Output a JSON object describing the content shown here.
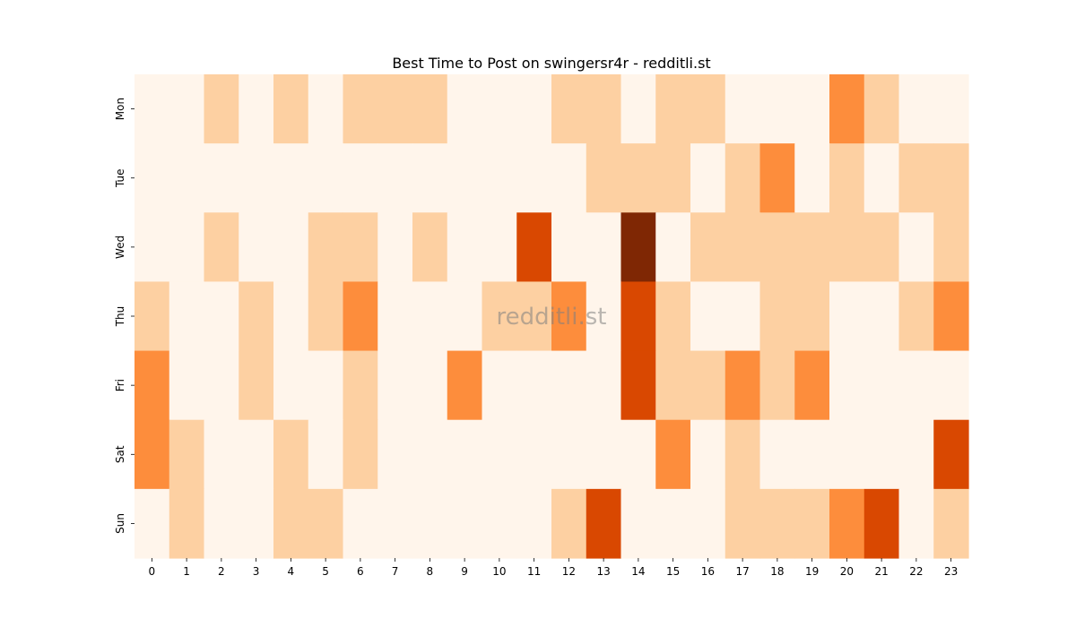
{
  "chart_data": {
    "type": "heatmap",
    "title": "Best Time to Post on swingersr4r - redditli.st",
    "watermark": "redditli.st",
    "x_categories": [
      "0",
      "1",
      "2",
      "3",
      "4",
      "5",
      "6",
      "7",
      "8",
      "9",
      "10",
      "11",
      "12",
      "13",
      "14",
      "15",
      "16",
      "17",
      "18",
      "19",
      "20",
      "21",
      "22",
      "23"
    ],
    "y_categories": [
      "Mon",
      "Tue",
      "Wed",
      "Thu",
      "Fri",
      "Sat",
      "Sun"
    ],
    "values": [
      [
        0,
        0,
        1,
        0,
        1,
        0,
        1,
        1,
        1,
        0,
        0,
        0,
        1,
        1,
        0,
        1,
        1,
        0,
        0,
        0,
        2,
        1,
        0,
        0
      ],
      [
        0,
        0,
        0,
        0,
        0,
        0,
        0,
        0,
        0,
        0,
        0,
        0,
        0,
        1,
        1,
        1,
        0,
        1,
        2,
        0,
        1,
        0,
        1,
        1
      ],
      [
        0,
        0,
        1,
        0,
        0,
        1,
        1,
        0,
        1,
        0,
        0,
        3,
        0,
        0,
        4,
        0,
        1,
        1,
        1,
        1,
        1,
        1,
        0,
        1
      ],
      [
        1,
        0,
        0,
        1,
        0,
        1,
        2,
        0,
        0,
        0,
        1,
        1,
        2,
        0,
        3,
        1,
        0,
        0,
        1,
        1,
        0,
        0,
        1,
        2
      ],
      [
        2,
        0,
        0,
        1,
        0,
        0,
        1,
        0,
        0,
        2,
        0,
        0,
        0,
        0,
        3,
        1,
        1,
        2,
        1,
        2,
        0,
        0,
        0,
        0
      ],
      [
        2,
        1,
        0,
        0,
        1,
        0,
        1,
        0,
        0,
        0,
        0,
        0,
        0,
        0,
        0,
        2,
        0,
        1,
        0,
        0,
        0,
        0,
        0,
        3
      ],
      [
        0,
        1,
        0,
        0,
        1,
        1,
        0,
        0,
        0,
        0,
        0,
        0,
        1,
        3,
        0,
        0,
        0,
        1,
        1,
        1,
        2,
        3,
        0,
        1
      ]
    ],
    "value_range": [
      0,
      4
    ],
    "colormap": "Oranges",
    "color_scale": [
      "#fff5eb",
      "#fdd0a2",
      "#fd8d3c",
      "#d94801",
      "#7f2704"
    ]
  }
}
